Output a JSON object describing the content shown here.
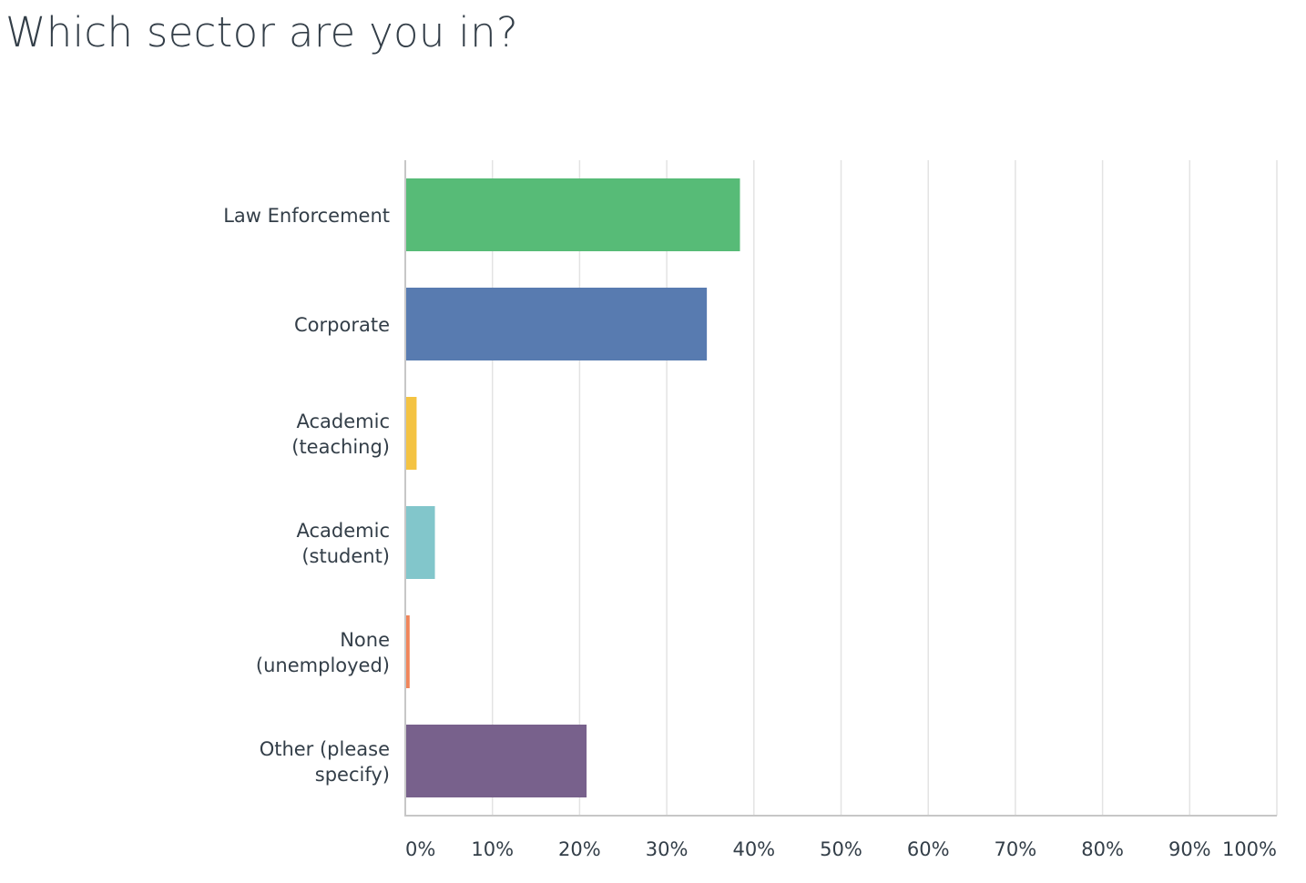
{
  "chart_data": {
    "type": "bar",
    "orientation": "horizontal",
    "title": "Which sector are you in?",
    "categories": [
      [
        "Law Enforcement"
      ],
      [
        "Corporate"
      ],
      [
        "Academic",
        "(teaching)"
      ],
      [
        "Academic",
        "(student)"
      ],
      [
        "None",
        "(unemployed)"
      ],
      [
        "Other (please",
        "specify)"
      ]
    ],
    "values": [
      38.4,
      34.6,
      1.3,
      3.4,
      0.5,
      20.8
    ],
    "colors": [
      "#57bb77",
      "#587bb0",
      "#f4c342",
      "#82c6cb",
      "#f0855a",
      "#78618c"
    ],
    "xlim": [
      0,
      100
    ],
    "xticks": [
      0,
      10,
      20,
      30,
      40,
      50,
      60,
      70,
      80,
      90,
      100
    ],
    "xtick_labels": [
      "0%",
      "10%",
      "20%",
      "30%",
      "40%",
      "50%",
      "60%",
      "70%",
      "80%",
      "90%",
      "100%"
    ],
    "grid": true,
    "legend": "none"
  }
}
